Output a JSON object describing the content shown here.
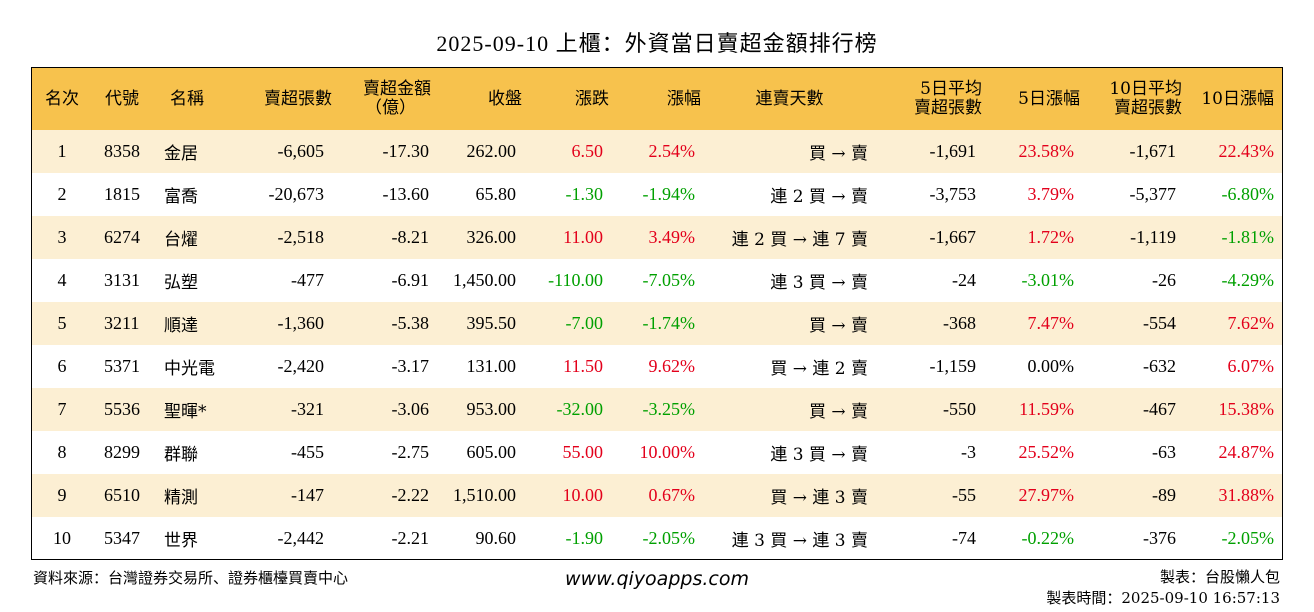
{
  "title": "2025-09-10 上櫃：外資當日賣超金額排行榜",
  "colors": {
    "header_bg": "#F7C24D",
    "odd_row_bg": "#FCEFD3",
    "up": "#E3001B",
    "down": "#00A000"
  },
  "headers": {
    "rank": "名次",
    "code": "代號",
    "name": "名稱",
    "sell_lots": "賣超張數",
    "sell_amount_1": "賣超金額",
    "sell_amount_2": "（億）",
    "close": "收盤",
    "change": "漲跌",
    "change_pct": "漲幅",
    "streak": "連賣天數",
    "avg5_1": "5日平均",
    "avg5_2": "賣超張數",
    "pct5": "5日漲幅",
    "avg10_1": "10日平均",
    "avg10_2": "賣超張數",
    "pct10": "10日漲幅"
  },
  "rows": [
    {
      "rank": "1",
      "code": "8358",
      "name": "金居",
      "sell_lots": "-6,605",
      "sell_amount": "-17.30",
      "close": "262.00",
      "change": "6.50",
      "change_pct": "2.54%",
      "streak": "買 → 賣",
      "avg5": "-1,691",
      "pct5": "23.58%",
      "avg10": "-1,671",
      "pct10": "22.43%"
    },
    {
      "rank": "2",
      "code": "1815",
      "name": "富喬",
      "sell_lots": "-20,673",
      "sell_amount": "-13.60",
      "close": "65.80",
      "change": "-1.30",
      "change_pct": "-1.94%",
      "streak": "連 2 買 → 賣",
      "avg5": "-3,753",
      "pct5": "3.79%",
      "avg10": "-5,377",
      "pct10": "-6.80%"
    },
    {
      "rank": "3",
      "code": "6274",
      "name": "台燿",
      "sell_lots": "-2,518",
      "sell_amount": "-8.21",
      "close": "326.00",
      "change": "11.00",
      "change_pct": "3.49%",
      "streak": "連 2 買 → 連 7 賣",
      "avg5": "-1,667",
      "pct5": "1.72%",
      "avg10": "-1,119",
      "pct10": "-1.81%"
    },
    {
      "rank": "4",
      "code": "3131",
      "name": "弘塑",
      "sell_lots": "-477",
      "sell_amount": "-6.91",
      "close": "1,450.00",
      "change": "-110.00",
      "change_pct": "-7.05%",
      "streak": "連 3 買 → 賣",
      "avg5": "-24",
      "pct5": "-3.01%",
      "avg10": "-26",
      "pct10": "-4.29%"
    },
    {
      "rank": "5",
      "code": "3211",
      "name": "順達",
      "sell_lots": "-1,360",
      "sell_amount": "-5.38",
      "close": "395.50",
      "change": "-7.00",
      "change_pct": "-1.74%",
      "streak": "買 → 賣",
      "avg5": "-368",
      "pct5": "7.47%",
      "avg10": "-554",
      "pct10": "7.62%"
    },
    {
      "rank": "6",
      "code": "5371",
      "name": "中光電",
      "sell_lots": "-2,420",
      "sell_amount": "-3.17",
      "close": "131.00",
      "change": "11.50",
      "change_pct": "9.62%",
      "streak": "買 → 連 2 賣",
      "avg5": "-1,159",
      "pct5": "0.00%",
      "avg10": "-632",
      "pct10": "6.07%"
    },
    {
      "rank": "7",
      "code": "5536",
      "name": "聖暉*",
      "sell_lots": "-321",
      "sell_amount": "-3.06",
      "close": "953.00",
      "change": "-32.00",
      "change_pct": "-3.25%",
      "streak": "買 → 賣",
      "avg5": "-550",
      "pct5": "11.59%",
      "avg10": "-467",
      "pct10": "15.38%"
    },
    {
      "rank": "8",
      "code": "8299",
      "name": "群聯",
      "sell_lots": "-455",
      "sell_amount": "-2.75",
      "close": "605.00",
      "change": "55.00",
      "change_pct": "10.00%",
      "streak": "連 3 買 → 賣",
      "avg5": "-3",
      "pct5": "25.52%",
      "avg10": "-63",
      "pct10": "24.87%"
    },
    {
      "rank": "9",
      "code": "6510",
      "name": "精測",
      "sell_lots": "-147",
      "sell_amount": "-2.22",
      "close": "1,510.00",
      "change": "10.00",
      "change_pct": "0.67%",
      "streak": "買 → 連 3 賣",
      "avg5": "-55",
      "pct5": "27.97%",
      "avg10": "-89",
      "pct10": "31.88%"
    },
    {
      "rank": "10",
      "code": "5347",
      "name": "世界",
      "sell_lots": "-2,442",
      "sell_amount": "-2.21",
      "close": "90.60",
      "change": "-1.90",
      "change_pct": "-2.05%",
      "streak": "連 3 買 → 連 3 賣",
      "avg5": "-74",
      "pct5": "-0.22%",
      "avg10": "-376",
      "pct10": "-2.05%"
    }
  ],
  "footer": {
    "source": "資料來源：台灣證券交易所、證券櫃檯買賣中心",
    "website": "www.qiyoapps.com",
    "maker": "製表：台股懶人包",
    "made_time": "製表時間：2025-09-10 16:57:13"
  }
}
